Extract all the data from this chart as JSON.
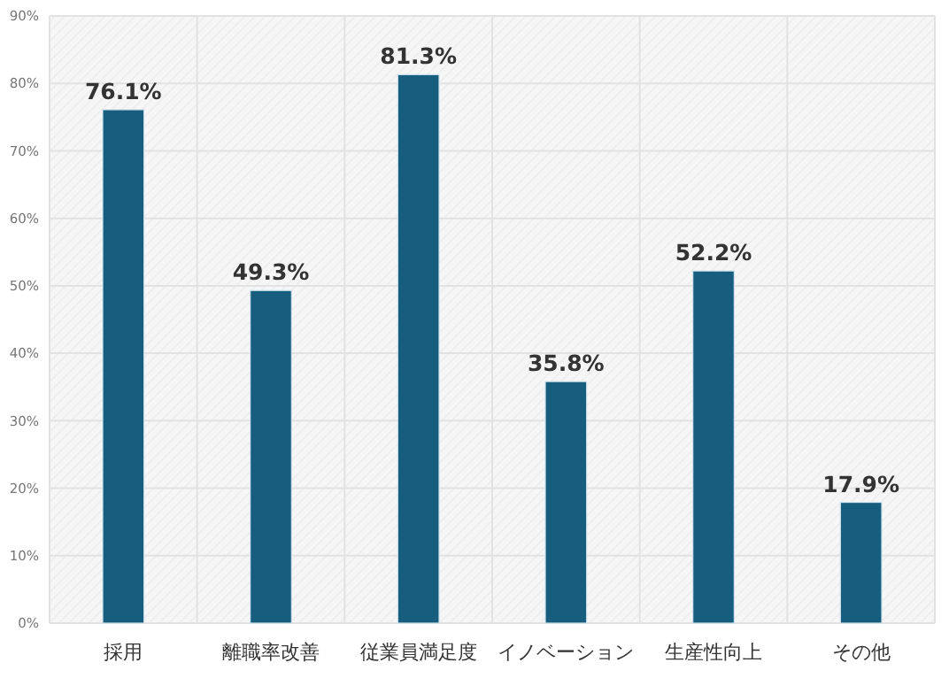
{
  "chart_data": {
    "type": "bar",
    "categories": [
      "採用",
      "離職率改善",
      "従業員満足度",
      "イノベーション",
      "生産性向上",
      "その他"
    ],
    "values": [
      76.1,
      49.3,
      81.3,
      35.8,
      52.2,
      17.9
    ],
    "value_labels": [
      "76.1%",
      "49.3%",
      "81.3%",
      "35.8%",
      "52.2%",
      "17.9%"
    ],
    "color": "#175e7e",
    "ylim": [
      0,
      90
    ],
    "yticks": [
      {
        "value": 0,
        "label": "0%"
      },
      {
        "value": 10,
        "label": "10%"
      },
      {
        "value": 20,
        "label": "20%"
      },
      {
        "value": 30,
        "label": "30%"
      },
      {
        "value": 40,
        "label": "40%"
      },
      {
        "value": 50,
        "label": "50%"
      },
      {
        "value": 60,
        "label": "60%"
      },
      {
        "value": 70,
        "label": "70%"
      },
      {
        "value": 80,
        "label": "80%"
      },
      {
        "value": 90,
        "label": "90%"
      }
    ],
    "grid": true
  }
}
